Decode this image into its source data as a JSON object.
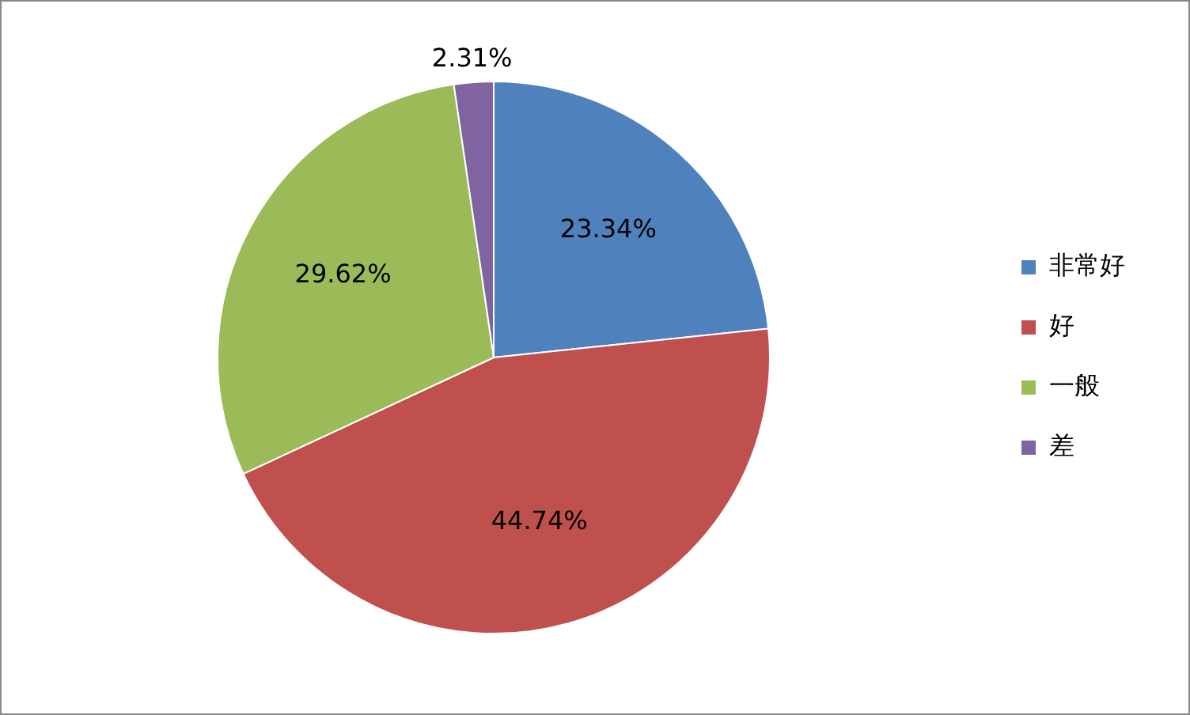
{
  "chart_data": {
    "type": "pie",
    "categories": [
      "非常好",
      "好",
      "一般",
      "差"
    ],
    "values": [
      23.34,
      44.74,
      29.62,
      2.31
    ],
    "colors": [
      "#4f81bd",
      "#c0504d",
      "#9bbb59",
      "#8064a2"
    ],
    "value_labels": [
      "23.34%",
      "44.74%",
      "29.62%",
      "2.31%"
    ],
    "legend": "right"
  }
}
